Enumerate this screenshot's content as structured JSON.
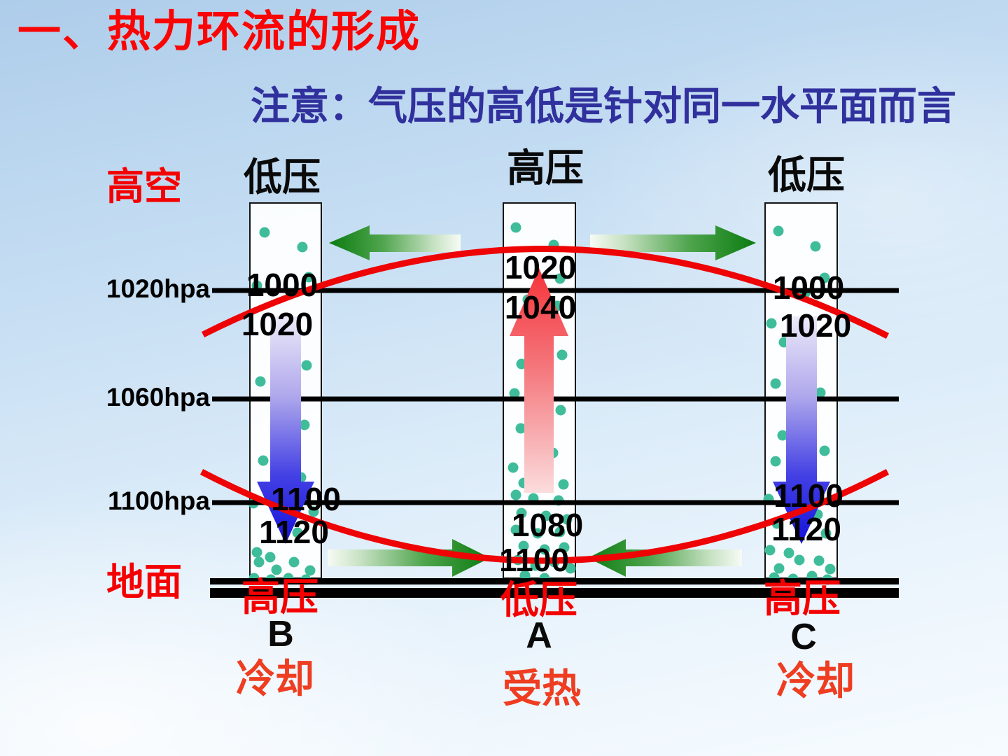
{
  "title": "一、热力环流的形成",
  "note": "注意：气压的高低是针对同一水平面而言",
  "axis": {
    "upper_air_label": "高空",
    "ground_label": "地面",
    "isobar_labels": [
      "1020hpa",
      "1060hpa",
      "1100hpa"
    ]
  },
  "columns": [
    {
      "letter": "B",
      "aloft_pressure": "低压",
      "surface_pressure": "高压",
      "thermal_state": "冷却",
      "values_1020_line": [
        "1000",
        "1020"
      ],
      "values_1100_line": [
        "1100",
        "1120"
      ]
    },
    {
      "letter": "A",
      "aloft_pressure": "高压",
      "surface_pressure": "低压",
      "thermal_state": "受热",
      "values_1020_line": [
        "1020",
        "1040"
      ],
      "values_1100_line": [
        "1080",
        "1100"
      ]
    },
    {
      "letter": "C",
      "aloft_pressure": "低压",
      "surface_pressure": "高压",
      "thermal_state": "冷却",
      "values_1020_line": [
        "1000",
        "1020"
      ],
      "values_1100_line": [
        "1100",
        "1120"
      ]
    }
  ],
  "colors": {
    "title_red": "#fa0505",
    "note_blue": "#31319e",
    "label_red": "#f50000",
    "thermal_red": "#ee3d20",
    "isobar_red": "#ee0405",
    "arrow_green_dark": "#0b7b10",
    "arrow_blue_dark": "#1513dc",
    "arrow_red": "#f5333a",
    "dot_teal": "#3fbd9b",
    "line_black": "#000000",
    "background_blue": "#c3dcf2"
  },
  "air_dots": {
    "B": [
      [
        378,
        332
      ],
      [
        432,
        353
      ],
      [
        441,
        396
      ],
      [
        367,
        408
      ],
      [
        438,
        522
      ],
      [
        372,
        545
      ],
      [
        435,
        607
      ],
      [
        398,
        628
      ],
      [
        376,
        658
      ],
      [
        430,
        682
      ],
      [
        398,
        706
      ],
      [
        362,
        719
      ],
      [
        448,
        731
      ],
      [
        425,
        761
      ],
      [
        367,
        789
      ],
      [
        386,
        796
      ],
      [
        370,
        803
      ],
      [
        395,
        814
      ],
      [
        420,
        803
      ],
      [
        443,
        815
      ],
      [
        363,
        826
      ],
      [
        387,
        828
      ],
      [
        412,
        826
      ],
      [
        437,
        828
      ]
    ],
    "A": [
      [
        737,
        325
      ],
      [
        791,
        350
      ],
      [
        800,
        398
      ],
      [
        754,
        428
      ],
      [
        796,
        437
      ],
      [
        745,
        520
      ],
      [
        803,
        507
      ],
      [
        735,
        562
      ],
      [
        801,
        586
      ],
      [
        744,
        612
      ],
      [
        790,
        647
      ],
      [
        733,
        668
      ],
      [
        748,
        690
      ],
      [
        805,
        692
      ],
      [
        737,
        707
      ],
      [
        762,
        712
      ],
      [
        798,
        715
      ],
      [
        745,
        733
      ],
      [
        780,
        737
      ],
      [
        810,
        742
      ],
      [
        737,
        757
      ],
      [
        768,
        762
      ],
      [
        800,
        760
      ],
      [
        748,
        780
      ],
      [
        778,
        785
      ],
      [
        806,
        782
      ],
      [
        740,
        800
      ],
      [
        765,
        808
      ],
      [
        792,
        803
      ],
      [
        815,
        812
      ],
      [
        750,
        822
      ],
      [
        778,
        826
      ]
    ],
    "C": [
      [
        1112,
        330
      ],
      [
        1165,
        352
      ],
      [
        1178,
        397
      ],
      [
        1150,
        419
      ],
      [
        1102,
        462
      ],
      [
        1120,
        489
      ],
      [
        1140,
        520
      ],
      [
        1108,
        548
      ],
      [
        1172,
        561
      ],
      [
        1118,
        622
      ],
      [
        1178,
        644
      ],
      [
        1108,
        659
      ],
      [
        1098,
        713
      ],
      [
        1168,
        735
      ],
      [
        1110,
        748
      ],
      [
        1180,
        762
      ],
      [
        1127,
        790
      ],
      [
        1100,
        786
      ],
      [
        1113,
        812
      ],
      [
        1142,
        800
      ],
      [
        1170,
        801
      ],
      [
        1186,
        813
      ],
      [
        1106,
        825
      ],
      [
        1133,
        827
      ],
      [
        1160,
        823
      ],
      [
        1182,
        828
      ]
    ]
  }
}
